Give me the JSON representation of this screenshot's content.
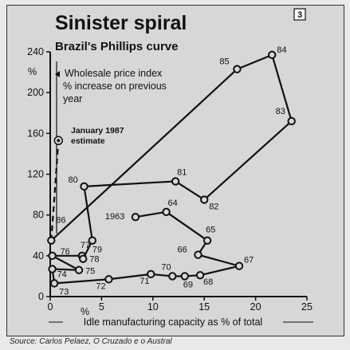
{
  "badge": "3",
  "source": "Source: Carlos Pelaez, O Cruzado e o Austral",
  "chart_data": {
    "type": "scatter",
    "title": "Sinister spiral",
    "subtitle": "Brazil's Phillips curve",
    "ylabel_unit": "%",
    "legend_line1": "Wholesale price index",
    "legend_line2": "% increase on previous",
    "legend_line3": "year",
    "xlabel": "Idle manufacturing capacity as % of total",
    "x_unit": "%",
    "xlim": [
      0,
      25
    ],
    "ylim": [
      0,
      240
    ],
    "xticks": [
      0,
      5,
      10,
      15,
      20,
      25
    ],
    "yticks": [
      0,
      40,
      80,
      120,
      160,
      200,
      240
    ],
    "grid": false,
    "estimate_point": {
      "x": 0.8,
      "y": 153,
      "label_line1": "January 1987",
      "label_line2": "estimate",
      "connects_to": "86"
    },
    "points": [
      {
        "label": "1963",
        "x": 8.3,
        "y": 78
      },
      {
        "label": "64",
        "x": 11.3,
        "y": 83
      },
      {
        "label": "65",
        "x": 15.3,
        "y": 55
      },
      {
        "label": "66",
        "x": 14.4,
        "y": 41
      },
      {
        "label": "67",
        "x": 18.4,
        "y": 30
      },
      {
        "label": "68",
        "x": 14.6,
        "y": 21
      },
      {
        "label": "69",
        "x": 13.1,
        "y": 20
      },
      {
        "label": "70",
        "x": 11.9,
        "y": 20
      },
      {
        "label": "71",
        "x": 9.8,
        "y": 22
      },
      {
        "label": "72",
        "x": 5.7,
        "y": 17
      },
      {
        "label": "73",
        "x": 0.4,
        "y": 13
      },
      {
        "label": "74",
        "x": 0.2,
        "y": 27
      },
      {
        "label": "75",
        "x": 2.8,
        "y": 26
      },
      {
        "label": "76",
        "x": 0.2,
        "y": 40
      },
      {
        "label": "77",
        "x": 3.1,
        "y": 40
      },
      {
        "label": "78",
        "x": 3.2,
        "y": 37
      },
      {
        "label": "79",
        "x": 4.1,
        "y": 55
      },
      {
        "label": "80",
        "x": 3.3,
        "y": 108
      },
      {
        "label": "81",
        "x": 12.2,
        "y": 113
      },
      {
        "label": "82",
        "x": 15.0,
        "y": 95
      },
      {
        "label": "83",
        "x": 23.5,
        "y": 172
      },
      {
        "label": "84",
        "x": 21.6,
        "y": 237
      },
      {
        "label": "85",
        "x": 18.2,
        "y": 223
      },
      {
        "label": "86",
        "x": 0.1,
        "y": 55
      }
    ]
  }
}
